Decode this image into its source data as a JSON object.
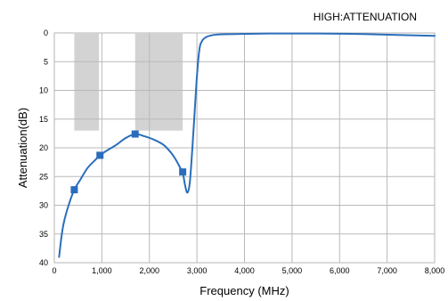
{
  "chart_data": {
    "type": "line",
    "title": "HIGH:ATTENUATION",
    "xlabel": "Frequency (MHz)",
    "ylabel": "Attenuation(dB)",
    "xlim": [
      0,
      8000
    ],
    "ylim": [
      0,
      40
    ],
    "y_reversed": true,
    "x_ticks": [
      0,
      1000,
      2000,
      3000,
      4000,
      5000,
      6000,
      7000,
      8000
    ],
    "x_tick_labels": [
      "0",
      "1,000",
      "2,000",
      "3,000",
      "4,000",
      "5,000",
      "6,000",
      "7,000",
      "8,000"
    ],
    "y_ticks": [
      0,
      5,
      10,
      15,
      20,
      25,
      30,
      35,
      40
    ],
    "y_tick_labels": [
      "0",
      "5",
      "10",
      "15",
      "20",
      "25",
      "30",
      "35",
      "40"
    ],
    "grid": true,
    "bands": [
      {
        "x0": 420,
        "x1": 940,
        "y0": 0,
        "y1": 17
      },
      {
        "x0": 1700,
        "x1": 2700,
        "y0": 0,
        "y1": 17
      }
    ],
    "series": [
      {
        "color": "#2a6ebb",
        "x": [
          100,
          150,
          200,
          300,
          420,
          550,
          700,
          850,
          960,
          1100,
          1300,
          1500,
          1700,
          1900,
          2100,
          2300,
          2450,
          2550,
          2650,
          2700,
          2750,
          2800,
          2850,
          2900,
          2950,
          3000,
          3050,
          3100,
          3200,
          3400,
          3800,
          4500,
          5500,
          6500,
          7500,
          8000
        ],
        "y": [
          39,
          35.5,
          33,
          30,
          27.3,
          25.5,
          23.5,
          22.2,
          21.3,
          20.5,
          19.5,
          18.3,
          17.6,
          18,
          18.6,
          19.5,
          20.8,
          22,
          23.5,
          24.2,
          26.5,
          27.8,
          26,
          20.5,
          14,
          7.5,
          3,
          1.5,
          0.7,
          0.3,
          0.2,
          0.1,
          0.1,
          0.2,
          0.4,
          0.5
        ]
      }
    ],
    "markers": {
      "color": "#2a6ebb",
      "x": [
        420,
        960,
        1700,
        2700
      ],
      "y": [
        27.3,
        21.3,
        17.6,
        24.2
      ]
    }
  }
}
